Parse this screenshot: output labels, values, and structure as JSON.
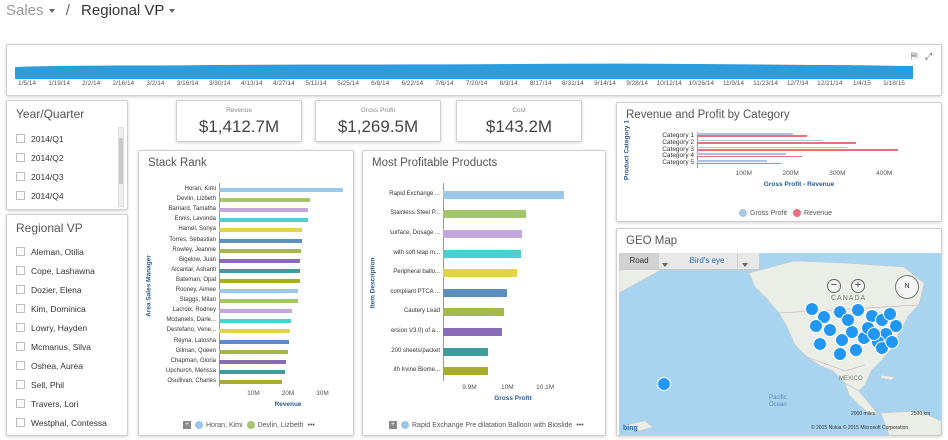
{
  "breadcrumb": {
    "root": "Sales",
    "separator": "/",
    "current": "Regional VP"
  },
  "timeline": {
    "labels": [
      "1/5/14",
      "1/19/14",
      "2/2/14",
      "2/16/14",
      "3/2/14",
      "3/16/14",
      "3/30/14",
      "4/13/14",
      "4/27/14",
      "5/11/14",
      "5/25/14",
      "6/8/14",
      "6/22/14",
      "7/6/14",
      "7/20/14",
      "8/3/14",
      "8/17/14",
      "8/31/14",
      "9/14/14",
      "9/28/14",
      "10/12/14",
      "10/26/14",
      "11/9/14",
      "11/23/14",
      "12/7/14",
      "12/21/14",
      "1/4/15",
      "1/18/15"
    ],
    "color": "#2d9cdb"
  },
  "year_quarter": {
    "title": "Year/Quarter",
    "items": [
      "2014/Q1",
      "2014/Q2",
      "2014/Q3",
      "2014/Q4"
    ]
  },
  "regional_vp": {
    "title": "Regional VP",
    "items": [
      "Aleman, Otilia",
      "Cope, Lashawna",
      "Dozier, Elena",
      "Kim, Dominica",
      "Lowry, Hayden",
      "Mcmanus, Silva",
      "Oshea, Aurea",
      "Sell, Phil",
      "Travers, Lori",
      "Westphal, Contessa"
    ]
  },
  "kpis": [
    {
      "label": "Revenue",
      "value": "$1,412.7M"
    },
    {
      "label": "Gross Profit",
      "value": "$1,269.5M"
    },
    {
      "label": "Cost",
      "value": "$143.2M"
    }
  ],
  "stack_rank": {
    "title": "Stack Rank",
    "legend": {
      "item1": "Horan, Kimi",
      "item2": "Devlin, Lizbeth",
      "more": "•••"
    },
    "chart_data": {
      "type": "bar",
      "orientation": "horizontal",
      "categories": [
        "Horan, Kimi",
        "Devlin, Lizbeth",
        "Barnard, Tamatha",
        "Ennis, Lavonda",
        "Hamel, Sonya",
        "Torres, Sebastian",
        "Rowley, Jeannie",
        "Bigelow, Juan",
        "Alcantar, Ashanti",
        "Bateman, Opal",
        "Rooney, Aimee",
        "Staggs, Milan",
        "Lacroix, Rodney",
        "Mcdaniels, Darle...",
        "Destefano, Vene...",
        "Reyna, Latosha",
        "Gilman, Queen",
        "Chapman, Gloria",
        "Upchurch, Merissa",
        "Osullivan, Charles"
      ],
      "values": [
        35.8,
        26.5,
        25.8,
        25.8,
        24.2,
        24.0,
        23.8,
        23.5,
        23.5,
        23.5,
        23.0,
        22.8,
        21.2,
        21.0,
        20.5,
        20.3,
        20.0,
        19.5,
        19.2,
        18.3
      ],
      "colors": [
        "#9bc7ea",
        "#a4c66b",
        "#c2a7df",
        "#4fcfcf",
        "#e2d44a",
        "#5b8fbf",
        "#a3b84a",
        "#8a6bb8",
        "#3d9d9a",
        "#a9ac2a",
        "#9bc7ea",
        "#a4c66b",
        "#c2a7df",
        "#4fcfcf",
        "#e2d44a",
        "#5b8fbf",
        "#a3b84a",
        "#8a6bb8",
        "#3d9d9a",
        "#a9ac2a"
      ],
      "xlabel": "Revenue",
      "ylabel": "Area Sales Manager",
      "ticks": [
        "10M",
        "20M",
        "30M"
      ],
      "tick_values": [
        10,
        20,
        30
      ],
      "xlim": [
        0,
        40
      ]
    }
  },
  "most_profitable": {
    "title": "Most Profitable Products",
    "legend": {
      "item1": "Rapid Exchange Pre dilatation Balloon with Bioslide",
      "more": "•••"
    },
    "chart_data": {
      "type": "bar",
      "orientation": "horizontal",
      "categories": [
        "Rapid Exchange ...",
        "Stainless Steel P...",
        "surface, Dosage ...",
        "with soft leap m...",
        "Peripheral ballo...",
        "compliant PTCA ...",
        "Cautery Lead",
        "ersion V3.0) of a...",
        "200 sheets/packet",
        "ith Irvine Biome..."
      ],
      "values": [
        10.15,
        10.05,
        10.04,
        10.035,
        10.025,
        10.0,
        9.99,
        9.985,
        9.95,
        9.95
      ],
      "colors": [
        "#9bc7ea",
        "#a4c66b",
        "#c2a7df",
        "#4fcfcf",
        "#e2d44a",
        "#5b8fbf",
        "#a3b84a",
        "#8a6bb8",
        "#3d9d9a",
        "#a9ac2a"
      ],
      "xlabel": "Gross Profit",
      "ylabel": "Item Description",
      "ticks": [
        "9.9M",
        "10M",
        "10.1M"
      ],
      "tick_values": [
        9.9,
        10.0,
        10.1
      ],
      "xlim": [
        9.83,
        10.2
      ]
    }
  },
  "rev_profit_category": {
    "title": "Revenue and Profit by Category",
    "legend": {
      "item1": "Gross Profit",
      "item2": "Revenue"
    },
    "chart_data": {
      "type": "bar",
      "orientation": "horizontal",
      "categories": [
        "Category 1",
        "Category 2",
        "Category 3",
        "Category 4",
        "Category 5"
      ],
      "series": [
        {
          "name": "Gross Profit",
          "values": [
            205,
            270,
            320,
            190,
            150
          ],
          "color": "#a7c6e6"
        },
        {
          "name": "Revenue",
          "values": [
            235,
            340,
            430,
            225,
            180
          ],
          "color": "#ec6e7e"
        }
      ],
      "xlabel": "Gross Profit - Revenue",
      "ylabel": "Product Category 1",
      "ticks": [
        "100M",
        "200M",
        "300M",
        "400M"
      ],
      "tick_values": [
        100,
        200,
        300,
        400
      ],
      "xlim": [
        0,
        470
      ]
    }
  },
  "geo_map": {
    "title": "GEO Map",
    "road_label": "Road",
    "birds_eye_label": "Bird's eye",
    "labels": {
      "canada": "CANADA",
      "mexico": "MEXICO",
      "pacific": "Pacific\nOcean",
      "bing": "bing",
      "copyright": "© 2015 Nokia   © 2015 Microsoft Corporation",
      "scale1": "2000 miles",
      "scale2": "2500 km",
      "compass": "N"
    },
    "marker_color": "#2196f3"
  }
}
